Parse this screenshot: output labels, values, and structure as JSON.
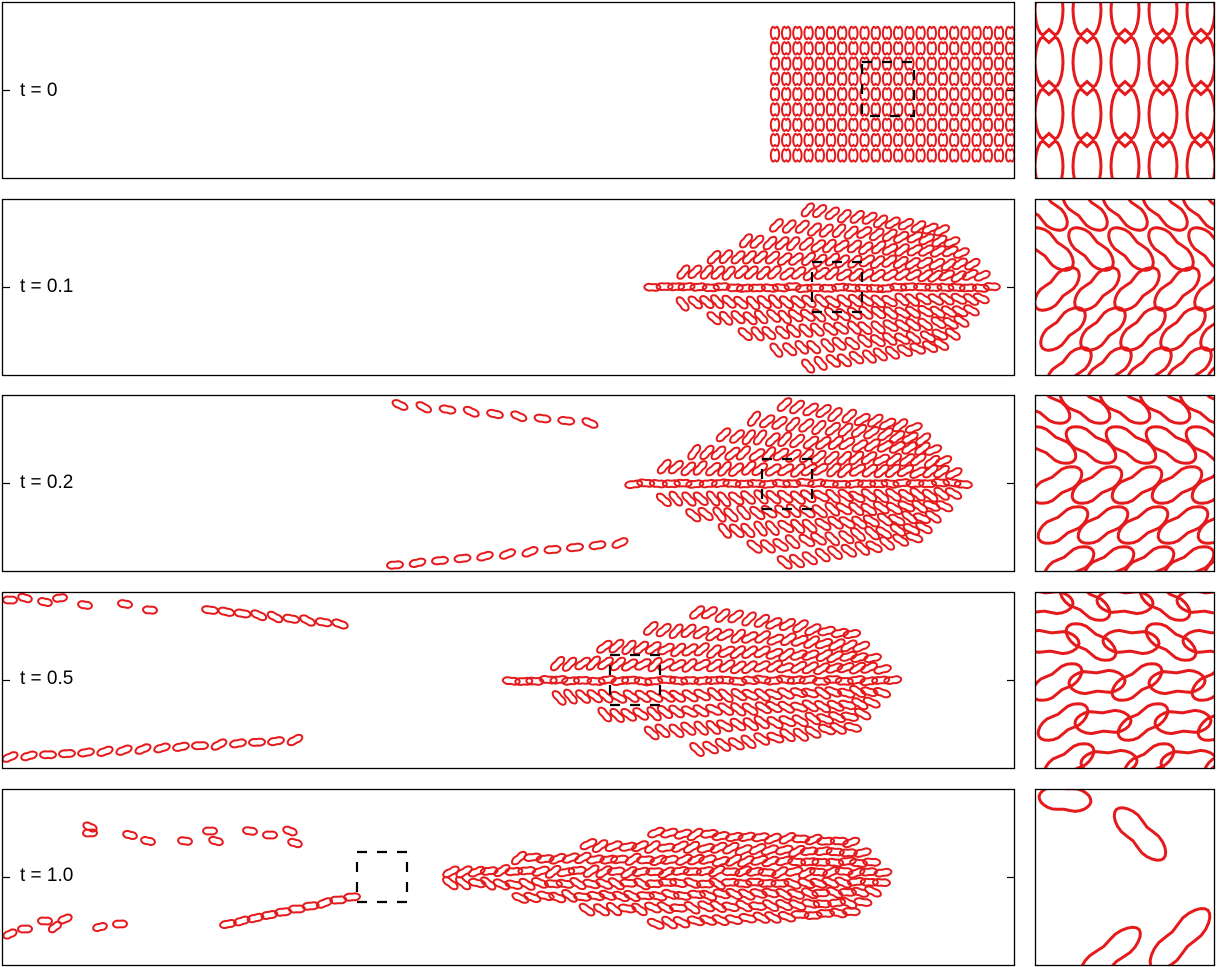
{
  "figure": {
    "accent_color": "#e41a1c",
    "frame_color": "#000000",
    "box_style": "dashed"
  },
  "panels": [
    {
      "label": "t = 0",
      "cells": 0
    },
    {
      "label": "t = 0.1",
      "cells": 0
    },
    {
      "label": "t = 0.2",
      "cells": 0
    },
    {
      "label": "t = 0.5",
      "cells": 0
    },
    {
      "label": "t = 1.0",
      "cells": 0
    }
  ]
}
